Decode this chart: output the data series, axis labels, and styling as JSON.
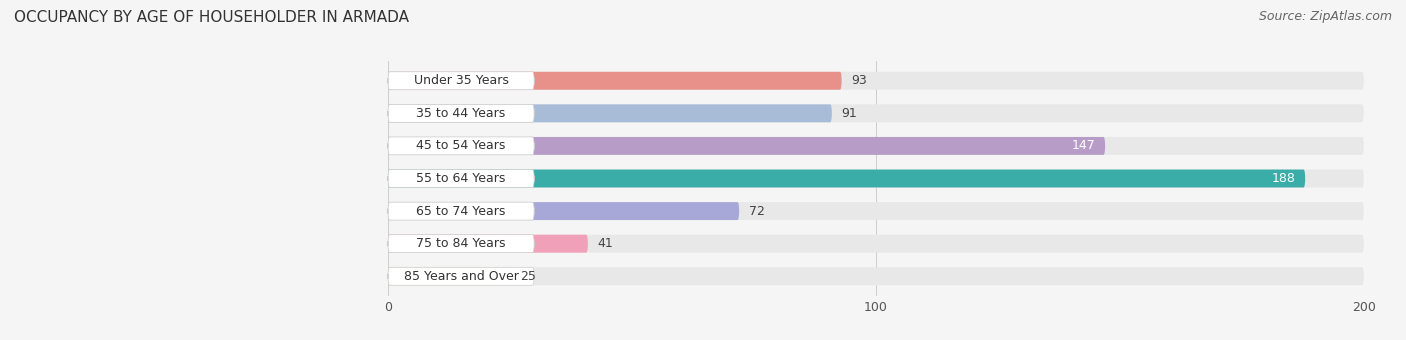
{
  "title": "OCCUPANCY BY AGE OF HOUSEHOLDER IN ARMADA",
  "source": "Source: ZipAtlas.com",
  "categories": [
    "Under 35 Years",
    "35 to 44 Years",
    "45 to 54 Years",
    "55 to 64 Years",
    "65 to 74 Years",
    "75 to 84 Years",
    "85 Years and Over"
  ],
  "values": [
    93,
    91,
    147,
    188,
    72,
    41,
    25
  ],
  "bar_colors": [
    "#E8908A",
    "#A8BCD8",
    "#B89CC8",
    "#3AADA8",
    "#A8A8D8",
    "#F0A0B8",
    "#F8C898"
  ],
  "bar_bg_color": "#E8E8E8",
  "xlim": [
    0,
    200
  ],
  "xticks": [
    0,
    100,
    200
  ],
  "title_fontsize": 11,
  "source_fontsize": 9,
  "label_fontsize": 9,
  "value_fontsize": 9,
  "bar_height": 0.55,
  "background_color": "#F5F5F5"
}
